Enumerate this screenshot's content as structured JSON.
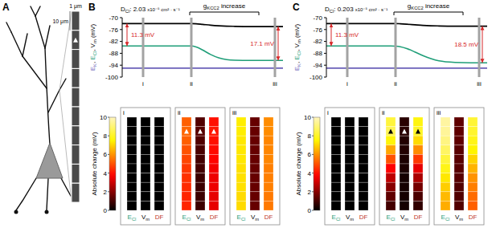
{
  "panel_a": {
    "label": "A",
    "width_label": "1 μm",
    "length_label": "10 μm"
  },
  "chart_data": [
    {
      "type": "line",
      "panel": "B",
      "title": {
        "text": "D",
        "sub": "Cl",
        "after": ": ",
        "value": 2.03,
        "unit": "x10⁻⁵ cm² · s⁻¹"
      },
      "bracket": {
        "text": "g",
        "sub": "KCC2",
        "after": " increase",
        "x": [
          42,
          85
        ]
      },
      "x": [
        0,
        10,
        20,
        30,
        40,
        43,
        46,
        50,
        55,
        60,
        65,
        70,
        80,
        90,
        100
      ],
      "xlim": [
        0,
        100
      ],
      "ylim": [
        -100,
        -70
      ],
      "yticks": [
        -100,
        -94,
        -88,
        -82,
        -76,
        -70
      ],
      "tick_labels": "y",
      "ylabel_separator": ", ",
      "ylabel_unit": " (mV)",
      "series": [
        {
          "text": "E",
          "sub": "K",
          "color": "#6a5fb8",
          "values": [
            -95.5,
            -95.5,
            -95.5,
            -95.5,
            -95.5,
            -95.5,
            -95.5,
            -95.5,
            -95.5,
            -95.5,
            -95.5,
            -95.5,
            -95.5,
            -95.5,
            -95.5
          ]
        },
        {
          "text": "E",
          "sub": "Cl",
          "color": "#1f9e78",
          "values": [
            -84.3,
            -84.3,
            -84.3,
            -84.3,
            -84.3,
            -84.3,
            -84.8,
            -86.3,
            -88.6,
            -90.3,
            -91.2,
            -91.5,
            -91.6,
            -91.6,
            -91.6
          ]
        },
        {
          "text": "V",
          "sub": "m",
          "color": "#000000",
          "values": [
            -73.0,
            -73.0,
            -73.0,
            -73.0,
            -73.0,
            -73.0,
            -73.1,
            -73.4,
            -73.8,
            -74.1,
            -74.3,
            -74.4,
            -74.5,
            -74.5,
            -74.5
          ]
        }
      ],
      "markers": [
        {
          "label": "i",
          "x": 13
        },
        {
          "label": "ii",
          "x": 43
        },
        {
          "label": "iii",
          "x": 95
        }
      ],
      "annotations": [
        {
          "text": "11.3 mV",
          "x": 3,
          "from": -73.0,
          "to": -84.3
        },
        {
          "text": "17.1 mV",
          "x": 97,
          "from": -74.5,
          "to": -91.6
        }
      ]
    },
    {
      "type": "heatmap",
      "panel": "B",
      "colorbar": {
        "range": [
          0,
          10
        ],
        "ticks": [
          0,
          2,
          4,
          6,
          8,
          10
        ],
        "label": "Absolute change (mV)"
      },
      "columns": [
        {
          "text": "E",
          "sub": "Cl",
          "color": "#1f9e78"
        },
        {
          "text": "V",
          "sub": "m",
          "color": "#000000"
        },
        {
          "text": "DF",
          "color": "#c0392b"
        }
      ],
      "markers": {
        "subpanel": "ii",
        "segment": 1
      },
      "subpanels": [
        {
          "label": "i",
          "cells": [
            [
              0,
              0,
              0,
              0,
              0,
              0,
              0,
              0,
              0,
              0
            ],
            [
              0,
              0,
              0,
              0,
              0,
              0,
              0,
              0,
              0,
              0
            ],
            [
              0,
              0,
              0,
              0,
              0,
              0,
              0,
              0,
              0,
              0
            ]
          ]
        },
        {
          "label": "ii",
          "cells": [
            [
              5.2,
              5.3,
              5.2,
              5.0,
              4.8,
              4.6,
              4.5,
              4.4,
              4.3,
              4.3
            ],
            [
              1.2,
              1.3,
              1.2,
              1.1,
              1.0,
              1.0,
              0.9,
              0.9,
              0.9,
              0.9
            ],
            [
              4.0,
              4.1,
              4.0,
              3.9,
              3.8,
              3.6,
              3.5,
              3.5,
              3.4,
              3.4
            ]
          ]
        },
        {
          "label": "iii",
          "cells": [
            [
              7.4,
              7.4,
              7.3,
              7.3,
              7.3,
              7.2,
              7.2,
              7.2,
              7.1,
              7.1
            ],
            [
              1.5,
              1.5,
              1.5,
              1.5,
              1.5,
              1.5,
              1.5,
              1.5,
              1.5,
              1.5
            ],
            [
              5.9,
              5.9,
              5.8,
              5.8,
              5.8,
              5.7,
              5.7,
              5.7,
              5.6,
              5.6
            ]
          ]
        }
      ]
    },
    {
      "type": "line",
      "panel": "C",
      "title": {
        "text": "D",
        "sub": "Cl",
        "after": ": ",
        "value": 0.203,
        "unit": "x10⁻⁵ cm² · s⁻¹"
      },
      "bracket": {
        "text": "g",
        "sub": "KCC2",
        "after": " increase",
        "x": [
          42,
          85
        ]
      },
      "x": [
        0,
        10,
        20,
        30,
        40,
        43,
        46,
        50,
        55,
        60,
        65,
        70,
        80,
        90,
        100
      ],
      "xlim": [
        0,
        100
      ],
      "ylim": [
        -100,
        -70
      ],
      "yticks": [
        -100,
        -94,
        -88,
        -82,
        -76,
        -70
      ],
      "tick_labels": "y",
      "ylabel_separator": ", ",
      "ylabel_unit": " (mV)",
      "series": [
        {
          "text": "E",
          "sub": "K",
          "color": "#6a5fb8",
          "values": [
            -95.5,
            -95.5,
            -95.5,
            -95.5,
            -95.5,
            -95.5,
            -95.5,
            -95.5,
            -95.5,
            -95.5,
            -95.5,
            -95.5,
            -95.5,
            -95.5,
            -95.5
          ]
        },
        {
          "text": "E",
          "sub": "Cl",
          "color": "#1f9e78",
          "values": [
            -84.3,
            -84.3,
            -84.3,
            -84.3,
            -84.3,
            -84.4,
            -84.7,
            -85.6,
            -87.3,
            -89.2,
            -90.7,
            -91.8,
            -92.6,
            -92.8,
            -92.8
          ]
        },
        {
          "text": "V",
          "sub": "m",
          "color": "#000000",
          "values": [
            -73.0,
            -73.0,
            -73.0,
            -73.0,
            -73.0,
            -73.0,
            -73.1,
            -73.3,
            -73.6,
            -73.9,
            -74.1,
            -74.2,
            -74.3,
            -74.3,
            -74.3
          ]
        }
      ],
      "markers": [
        {
          "label": "i",
          "x": 13
        },
        {
          "label": "ii",
          "x": 43
        },
        {
          "label": "iii",
          "x": 95
        }
      ],
      "annotations": [
        {
          "text": "11.3 mV",
          "x": 3,
          "from": -73.0,
          "to": -84.3
        },
        {
          "text": "18.5 mV",
          "x": 97,
          "from": -74.3,
          "to": -92.8
        }
      ]
    },
    {
      "type": "heatmap",
      "panel": "C",
      "colorbar": {
        "range": [
          0,
          10
        ],
        "ticks": [
          0,
          2,
          4,
          6,
          8,
          10
        ],
        "label": "Absolute change (mV)"
      },
      "columns": [
        {
          "text": "E",
          "sub": "Cl",
          "color": "#1f9e78"
        },
        {
          "text": "V",
          "sub": "m",
          "color": "#000000"
        },
        {
          "text": "DF",
          "color": "#c0392b"
        }
      ],
      "markers": {
        "subpanel": "ii",
        "segment": 1
      },
      "subpanels": [
        {
          "label": "i",
          "cells": [
            [
              0,
              0,
              0,
              0,
              0,
              0,
              0,
              0,
              0,
              0
            ],
            [
              0,
              0,
              0,
              0,
              0,
              0,
              0,
              0,
              0,
              0
            ],
            [
              0,
              0,
              0,
              0,
              0,
              0,
              0,
              0,
              0,
              0
            ]
          ]
        },
        {
          "label": "ii",
          "cells": [
            [
              8.3,
              8.6,
              7.6,
              6.3,
              5.0,
              3.8,
              2.8,
              2.0,
              1.4,
              1.0
            ],
            [
              0.6,
              0.6,
              0.5,
              0.5,
              0.4,
              0.4,
              0.3,
              0.3,
              0.3,
              0.3
            ],
            [
              7.7,
              8.0,
              7.1,
              5.9,
              4.6,
              3.4,
              2.5,
              1.7,
              1.1,
              0.7
            ]
          ]
        },
        {
          "label": "iii",
          "cells": [
            [
              9.6,
              9.5,
              9.2,
              8.8,
              8.3,
              7.8,
              7.3,
              6.9,
              6.6,
              6.4
            ],
            [
              1.4,
              1.4,
              1.4,
              1.3,
              1.3,
              1.3,
              1.3,
              1.2,
              1.2,
              1.2
            ],
            [
              8.2,
              8.1,
              7.8,
              7.5,
              7.0,
              6.5,
              6.0,
              5.7,
              5.4,
              5.2
            ]
          ]
        }
      ]
    }
  ]
}
